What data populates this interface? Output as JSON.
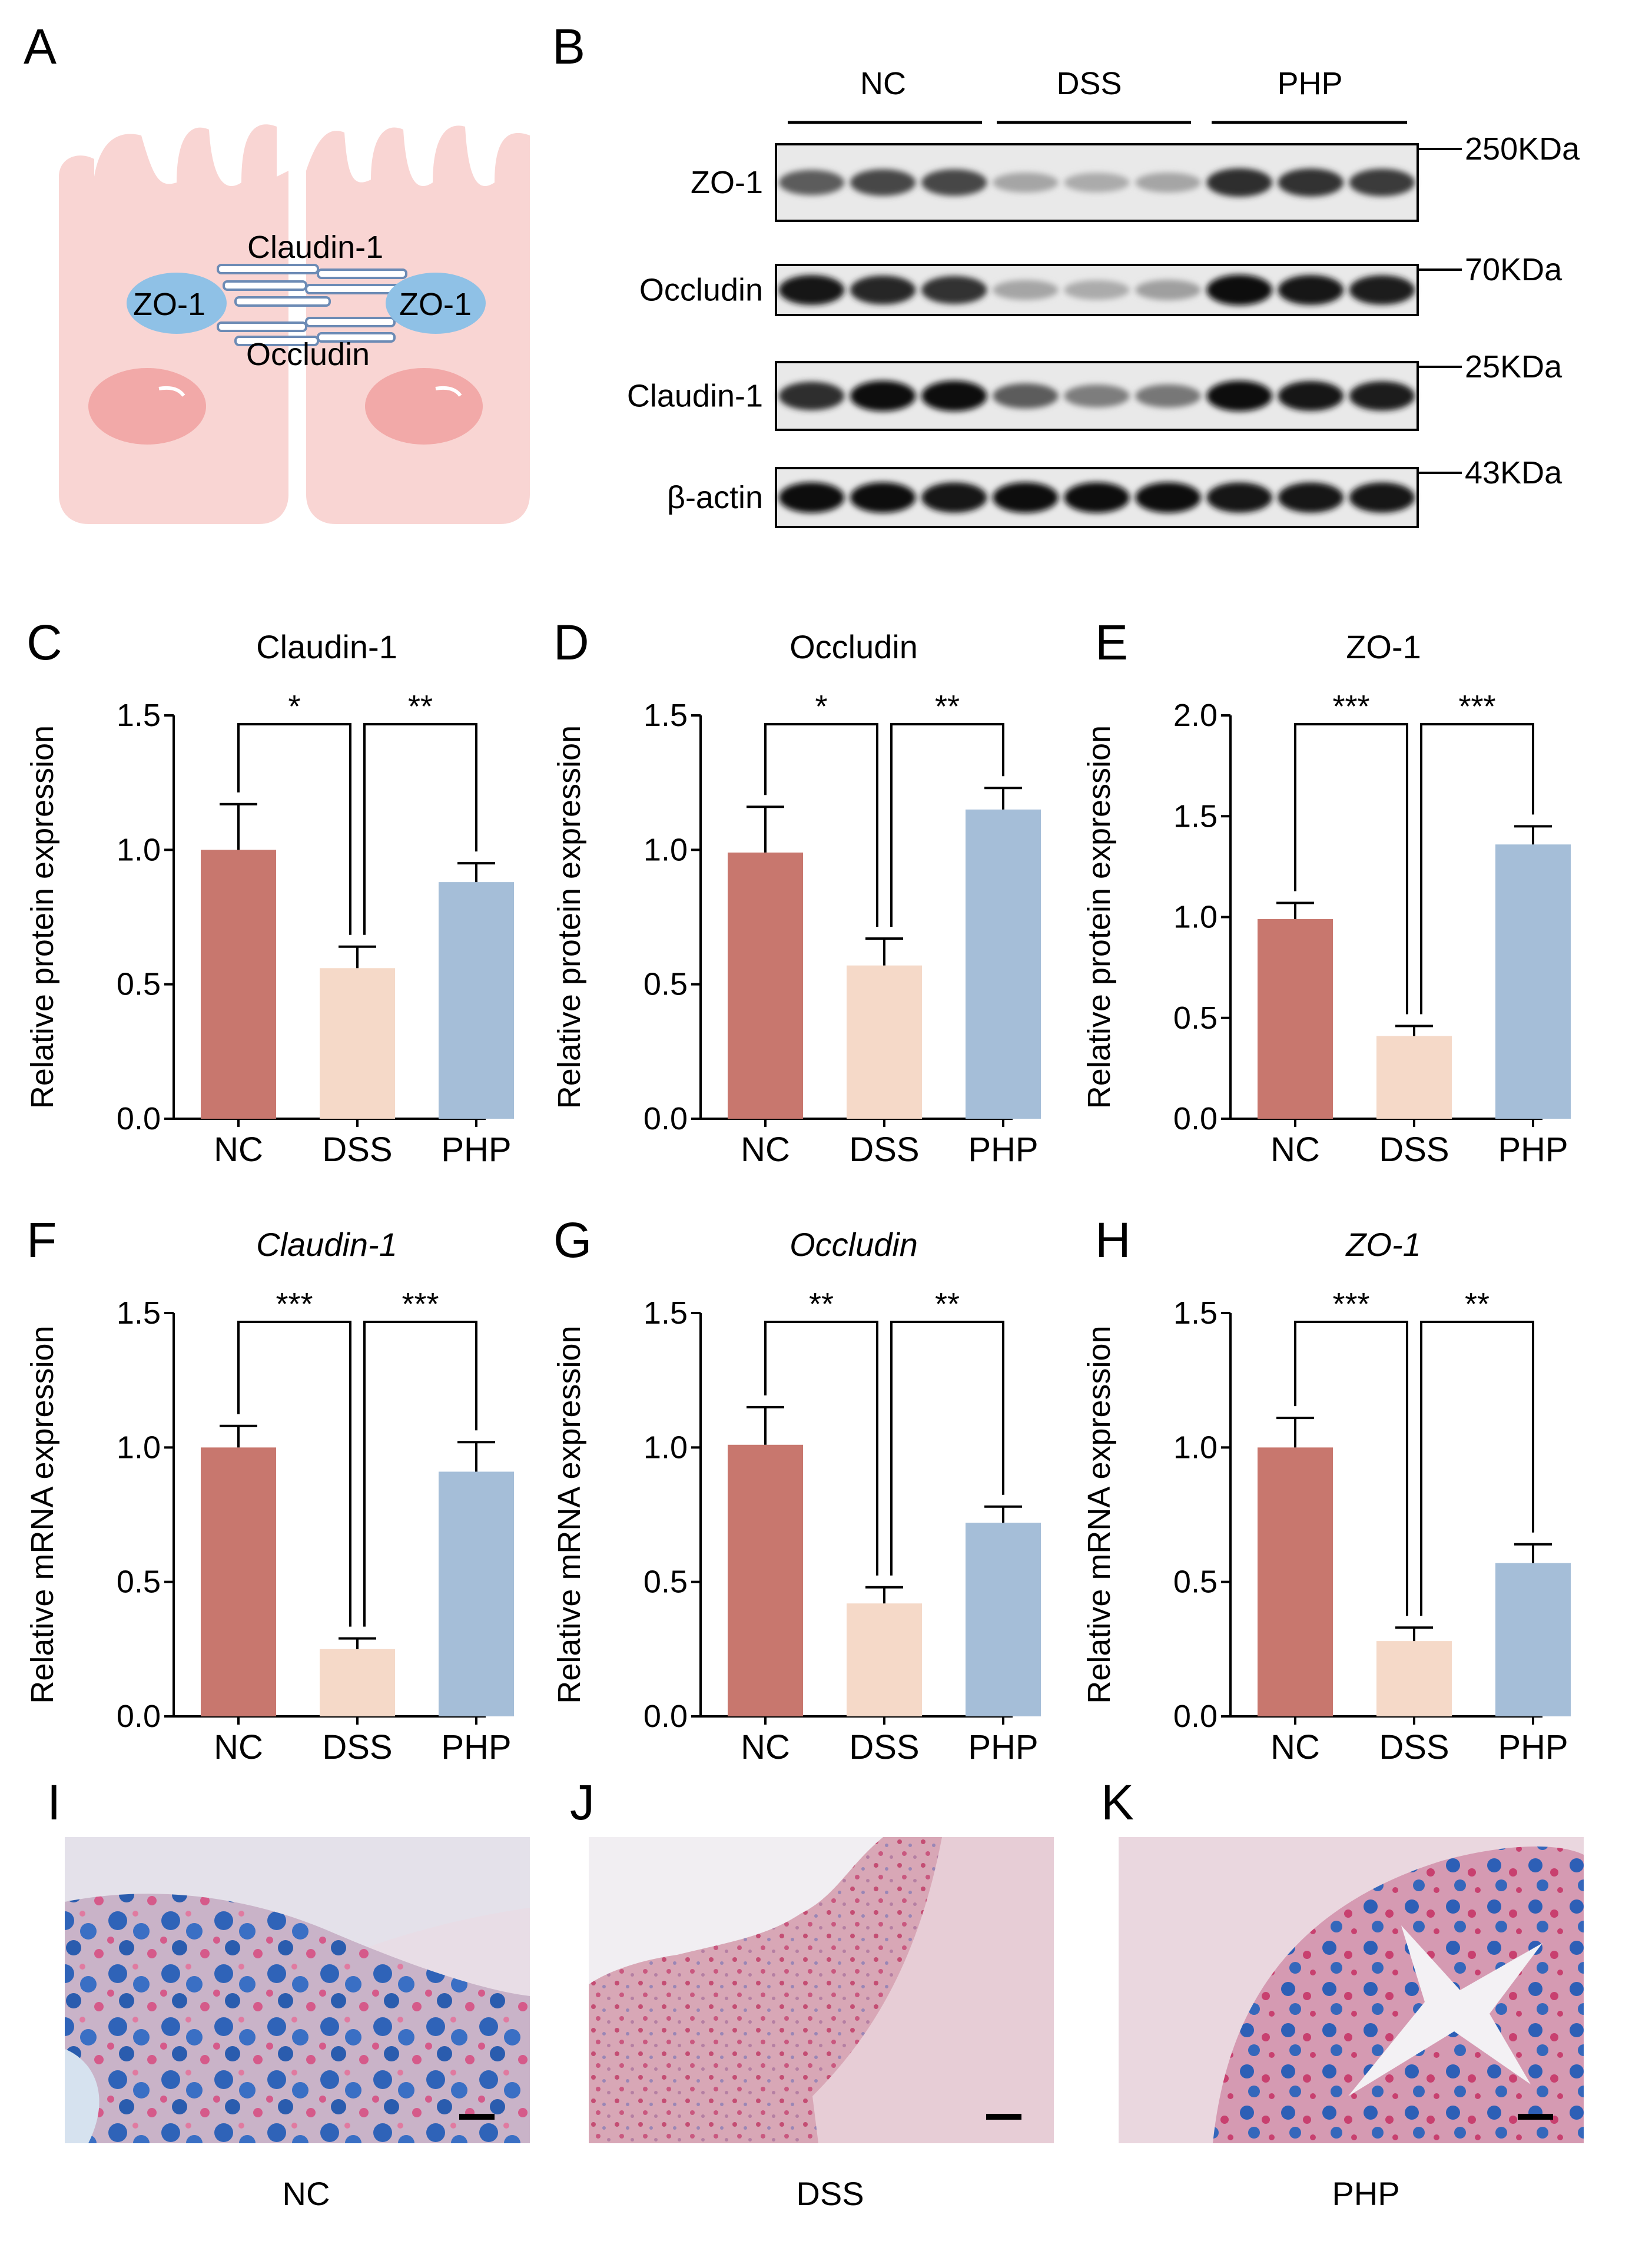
{
  "panels": {
    "A": {
      "letter": "A",
      "labels": [
        "Claudin-1",
        "ZO-1",
        "ZO-1",
        "Occludin"
      ]
    },
    "B": {
      "letter": "B",
      "groups": [
        "NC",
        "DSS",
        "PHP"
      ],
      "rows": [
        {
          "name": "ZO-1",
          "size": "250KDa",
          "intensity": [
            0.62,
            0.72,
            0.72,
            0.25,
            0.22,
            0.25,
            0.85,
            0.82,
            0.78
          ]
        },
        {
          "name": "Occludin",
          "size": "70KDa",
          "intensity": [
            0.95,
            0.88,
            0.82,
            0.25,
            0.22,
            0.28,
            1.0,
            0.95,
            0.92
          ]
        },
        {
          "name": "Claudin-1",
          "size": "25KDa",
          "intensity": [
            0.85,
            1.0,
            1.0,
            0.62,
            0.45,
            0.48,
            1.0,
            0.95,
            0.92
          ]
        },
        {
          "name": "β-actin",
          "size": "43KDa",
          "intensity": [
            1.0,
            1.0,
            0.98,
            1.0,
            1.0,
            1.0,
            0.98,
            0.98,
            0.98
          ]
        }
      ]
    },
    "I": {
      "letter": "I",
      "caption": "NC"
    },
    "J": {
      "letter": "J",
      "caption": "DSS"
    },
    "K": {
      "letter": "K",
      "caption": "PHP"
    }
  },
  "chart_data": [
    {
      "panel": "C",
      "type": "bar",
      "title": "Claudin-1",
      "italic": false,
      "ylabel": "Relative protein expression",
      "ylim": [
        0,
        1.5
      ],
      "ticks": [
        "0.0",
        "0.5",
        "1.0",
        "1.5"
      ],
      "categories": [
        "NC",
        "DSS",
        "PHP"
      ],
      "values": [
        1.0,
        0.56,
        0.88
      ],
      "errors": [
        0.17,
        0.08,
        0.07
      ],
      "colors": [
        "#c8776e",
        "#f5d9c8",
        "#a5bed8"
      ],
      "significance": [
        {
          "from": 0,
          "to": 1,
          "label": "*"
        },
        {
          "from": 1,
          "to": 2,
          "label": "**"
        }
      ]
    },
    {
      "panel": "D",
      "type": "bar",
      "title": "Occludin",
      "italic": false,
      "ylabel": "Relative protein expression",
      "ylim": [
        0,
        1.5
      ],
      "ticks": [
        "0.0",
        "0.5",
        "1.0",
        "1.5"
      ],
      "categories": [
        "NC",
        "DSS",
        "PHP"
      ],
      "values": [
        0.99,
        0.57,
        1.15
      ],
      "errors": [
        0.17,
        0.1,
        0.08
      ],
      "colors": [
        "#c8776e",
        "#f5d9c8",
        "#a5bed8"
      ],
      "significance": [
        {
          "from": 0,
          "to": 1,
          "label": "*"
        },
        {
          "from": 1,
          "to": 2,
          "label": "**"
        }
      ]
    },
    {
      "panel": "E",
      "type": "bar",
      "title": "ZO-1",
      "italic": false,
      "ylabel": "Relative protein expression",
      "ylim": [
        0,
        2.0
      ],
      "ticks": [
        "0.0",
        "0.5",
        "1.0",
        "1.5",
        "2.0"
      ],
      "categories": [
        "NC",
        "DSS",
        "PHP"
      ],
      "values": [
        0.99,
        0.41,
        1.36
      ],
      "errors": [
        0.08,
        0.05,
        0.09
      ],
      "colors": [
        "#c8776e",
        "#f5d9c8",
        "#a5bed8"
      ],
      "significance": [
        {
          "from": 0,
          "to": 1,
          "label": "***"
        },
        {
          "from": 1,
          "to": 2,
          "label": "***"
        }
      ]
    },
    {
      "panel": "F",
      "type": "bar",
      "title": "Claudin-1",
      "italic": true,
      "ylabel": "Relative mRNA expression",
      "ylim": [
        0,
        1.5
      ],
      "ticks": [
        "0.0",
        "0.5",
        "1.0",
        "1.5"
      ],
      "categories": [
        "NC",
        "DSS",
        "PHP"
      ],
      "values": [
        1.0,
        0.25,
        0.91
      ],
      "errors": [
        0.08,
        0.04,
        0.11
      ],
      "colors": [
        "#c8776e",
        "#f5d9c8",
        "#a5bed8"
      ],
      "significance": [
        {
          "from": 0,
          "to": 1,
          "label": "***"
        },
        {
          "from": 1,
          "to": 2,
          "label": "***"
        }
      ]
    },
    {
      "panel": "G",
      "type": "bar",
      "title": "Occludin",
      "italic": true,
      "ylabel": "Relative mRNA expression",
      "ylim": [
        0,
        1.5
      ],
      "ticks": [
        "0.0",
        "0.5",
        "1.0",
        "1.5"
      ],
      "categories": [
        "NC",
        "DSS",
        "PHP"
      ],
      "values": [
        1.01,
        0.42,
        0.72
      ],
      "errors": [
        0.14,
        0.06,
        0.06
      ],
      "colors": [
        "#c8776e",
        "#f5d9c8",
        "#a5bed8"
      ],
      "significance": [
        {
          "from": 0,
          "to": 1,
          "label": "**"
        },
        {
          "from": 1,
          "to": 2,
          "label": "**"
        }
      ]
    },
    {
      "panel": "H",
      "type": "bar",
      "title": "ZO-1",
      "italic": true,
      "ylabel": "Relative mRNA expression",
      "ylim": [
        0,
        1.5
      ],
      "ticks": [
        "0.0",
        "0.5",
        "1.0",
        "1.5"
      ],
      "categories": [
        "NC",
        "DSS",
        "PHP"
      ],
      "values": [
        1.0,
        0.28,
        0.57
      ],
      "errors": [
        0.11,
        0.05,
        0.07
      ],
      "colors": [
        "#c8776e",
        "#f5d9c8",
        "#a5bed8"
      ],
      "significance": [
        {
          "from": 0,
          "to": 1,
          "label": "***"
        },
        {
          "from": 1,
          "to": 2,
          "label": "**"
        }
      ]
    }
  ]
}
